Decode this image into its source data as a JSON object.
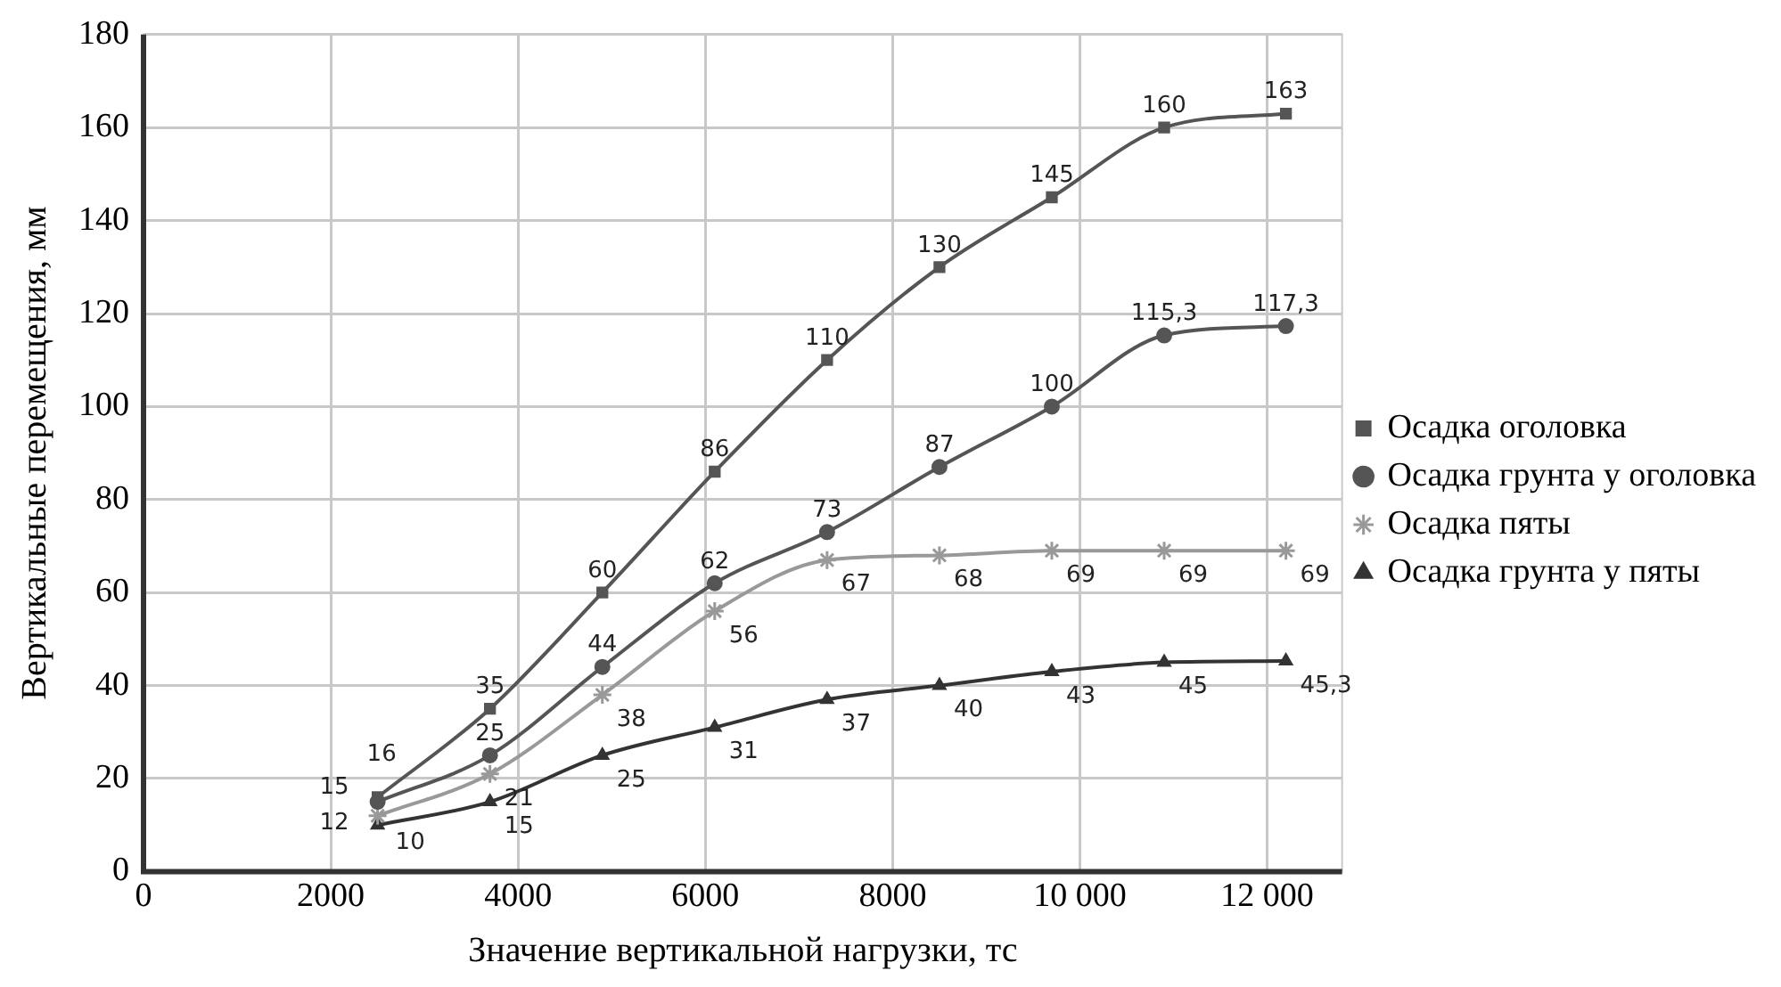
{
  "chart_data": {
    "type": "line",
    "xlabel": "Значение вертикальной нагрузки, тс",
    "ylabel": "Вертикальные перемещения, мм",
    "x": [
      2500,
      3700,
      4900,
      6100,
      7300,
      8500,
      9700,
      10900,
      12200
    ],
    "xlim": [
      0,
      12800
    ],
    "xticks": [
      0,
      2000,
      4000,
      6000,
      8000,
      {
        "value": 10000,
        "label": "10 000"
      },
      {
        "value": 12000,
        "label": "12 000"
      }
    ],
    "ylim": [
      0,
      180
    ],
    "yticks": [
      0,
      20,
      40,
      60,
      80,
      100,
      120,
      140,
      160,
      180
    ],
    "grid": true,
    "legend": "right",
    "line_style": "solid",
    "series": [
      {
        "name": "Осадка оголовка",
        "color": "#555555",
        "marker": "square",
        "values": [
          16,
          35,
          60,
          86,
          110,
          130,
          145,
          160,
          163
        ],
        "value_labels": [
          "16",
          "35",
          "60",
          "86",
          "110",
          "130",
          "145",
          "160",
          "163"
        ]
      },
      {
        "name": "Осадка грунта у оголовка",
        "color": "#555555",
        "marker": "circle",
        "values": [
          15,
          25,
          44,
          62,
          73,
          87,
          100,
          115.3,
          117.3
        ],
        "value_labels": [
          "15",
          "25",
          "44",
          "62",
          "73",
          "87",
          "100",
          "115,3",
          "117,3"
        ]
      },
      {
        "name": "Осадка пяты",
        "color": "#999999",
        "marker": "cross",
        "values": [
          12,
          21,
          38,
          56,
          67,
          68,
          69,
          69,
          69
        ],
        "value_labels": [
          "12",
          "21",
          "38",
          "56",
          "67",
          "68",
          "69",
          "69",
          "69"
        ]
      },
      {
        "name": "Осадка грунта у пяты",
        "color": "#333333",
        "marker": "triangle",
        "values": [
          10,
          15,
          25,
          31,
          37,
          40,
          43,
          45,
          45.3
        ],
        "value_labels": [
          "10",
          "15",
          "25",
          "31",
          "37",
          "40",
          "43",
          "45",
          "45,3"
        ]
      }
    ]
  }
}
